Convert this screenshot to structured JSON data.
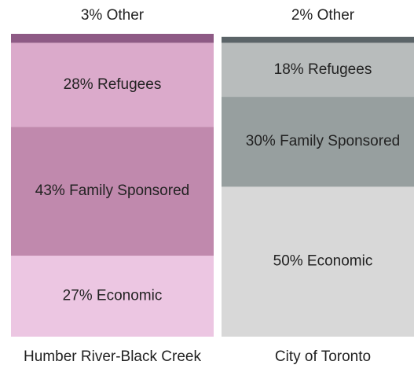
{
  "chart_data": {
    "type": "stacked_bar",
    "categories": [
      "Humber River-Black Creek",
      "City of Toronto"
    ],
    "series": [
      {
        "colors": [
          "#ecc6e2",
          "#d8d8d8"
        ],
        "values": [
          27,
          50
        ],
        "value_labels": [
          "27% Economic",
          "50% Economic"
        ]
      },
      {
        "colors": [
          "#c089ad",
          "#979f9f"
        ],
        "values": [
          43,
          30
        ],
        "value_labels": [
          "43% Family Sponsored",
          "30% Family Sponsored"
        ]
      },
      {
        "colors": [
          "#dbaacb",
          "#b8bcbc"
        ],
        "values": [
          28,
          18
        ],
        "value_labels": [
          "28% Refugees",
          "18% Refugees"
        ]
      },
      {
        "colors": [
          "#8e5a85",
          "#5b6468"
        ],
        "values": [
          3,
          2
        ],
        "value_labels": [
          "3% Other",
          "2% Other"
        ]
      }
    ]
  }
}
